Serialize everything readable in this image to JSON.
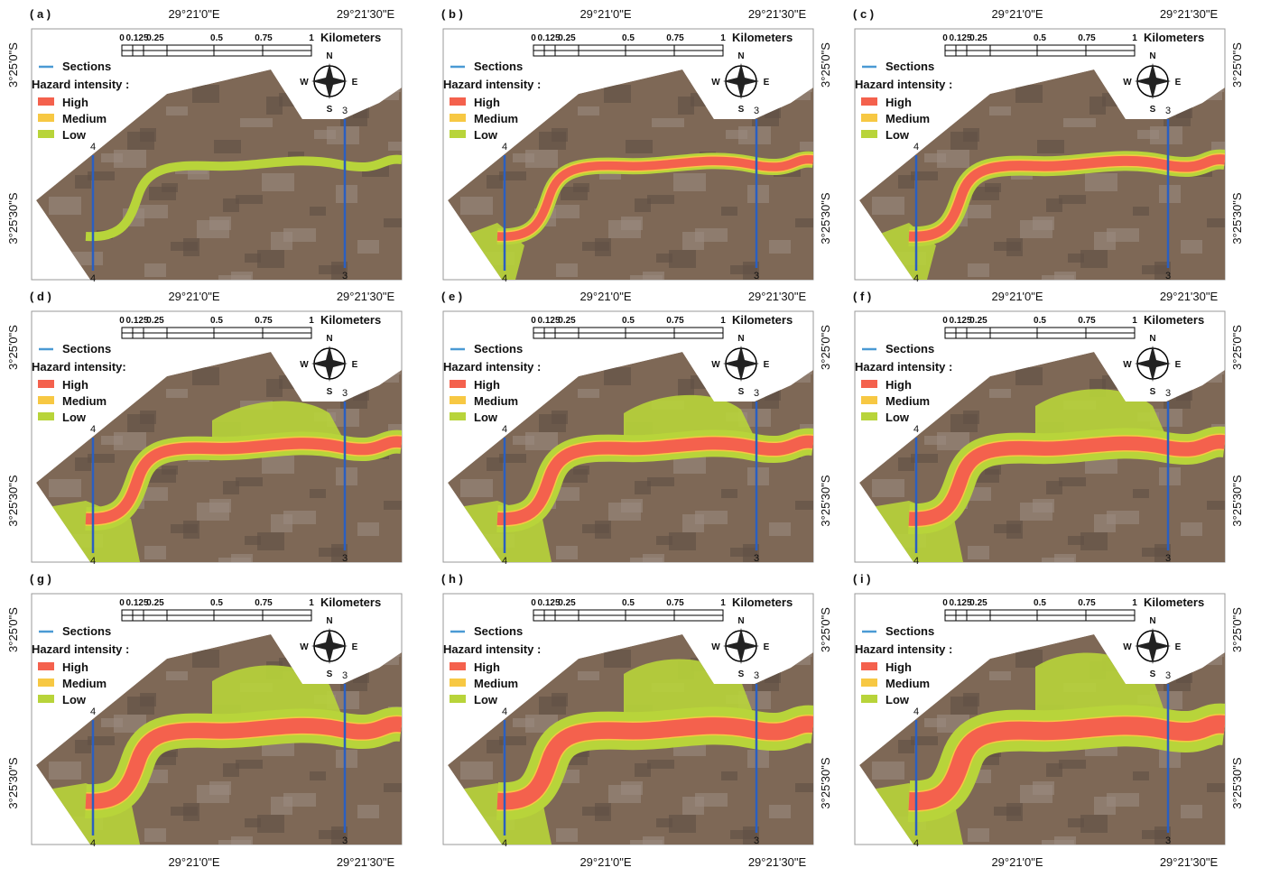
{
  "panels": [
    {
      "label": "( a )",
      "lon_labels": [
        "29°21'0\"E",
        "29°21'30\"E"
      ],
      "lat_labels": [
        "3°25'0\"S",
        "3°25'30\"S"
      ],
      "legend_title": "Hazard intensity :"
    },
    {
      "label": "( b )",
      "lon_labels": [
        "29°21'0\"E",
        "29°21'30\"E"
      ],
      "lat_labels": [
        "3°25'0\"S",
        "3°25'30\"S"
      ],
      "legend_title": "Hazard intensity :"
    },
    {
      "label": "( c )",
      "lon_labels": [
        "29°21'0\"E",
        "29°21'30\"E"
      ],
      "lat_labels": [
        "3°25'0\"S",
        "3°25'30\"S"
      ],
      "legend_title": "Hazard intensity :"
    },
    {
      "label": "( d )",
      "lon_labels": [
        "29°21'0\"E",
        "29°21'30\"E"
      ],
      "lat_labels": [
        "3°25'0\"S",
        "3°25'30\"S"
      ],
      "legend_title": "Hazard intensity:"
    },
    {
      "label": "( e )",
      "lon_labels": [
        "29°21'0\"E",
        "29°21'30\"E"
      ],
      "lat_labels": [
        "3°25'0\"S",
        "3°25'30\"S"
      ],
      "legend_title": "Hazard intensity :"
    },
    {
      "label": "( f )",
      "lon_labels": [
        "29°21'0\"E",
        "29°21'30\"E"
      ],
      "lat_labels": [
        "3°25'0\"S",
        "3°25'30\"S"
      ],
      "legend_title": "Hazard intensity :"
    },
    {
      "label": "( g )",
      "lon_labels": [
        "29°21'0\"E",
        "29°21'30\"E"
      ],
      "lat_labels": [
        "3°25'0\"S",
        "3°25'30\"S"
      ],
      "legend_title": "Hazard intensity :"
    },
    {
      "label": "( h )",
      "lon_labels": [
        "29°21'0\"E",
        "29°21'30\"E"
      ],
      "lat_labels": [
        "3°25'0\"S",
        "3°25'30\"S"
      ],
      "legend_title": "Hazard intensity :"
    },
    {
      "label": "( i )",
      "lon_labels": [
        "29°21'0\"E",
        "29°21'30\"E"
      ],
      "lat_labels": [
        "3°25'0\"S",
        "3°25'30\"S"
      ],
      "legend_title": "Hazard intensity :"
    }
  ],
  "legend": {
    "sections": "Sections",
    "items": [
      {
        "name": "High",
        "color": "#f4614d"
      },
      {
        "name": "Medium",
        "color": "#f7c843"
      },
      {
        "name": "Low",
        "color": "#b8d43a"
      }
    ]
  },
  "scale": {
    "ticks": [
      "0",
      "0.125",
      "0.25",
      "0.5",
      "0.75",
      "1"
    ],
    "unit": "Kilometers"
  },
  "compass": [
    "N",
    "E",
    "S",
    "W"
  ],
  "section_labels": [
    "3",
    "4"
  ]
}
